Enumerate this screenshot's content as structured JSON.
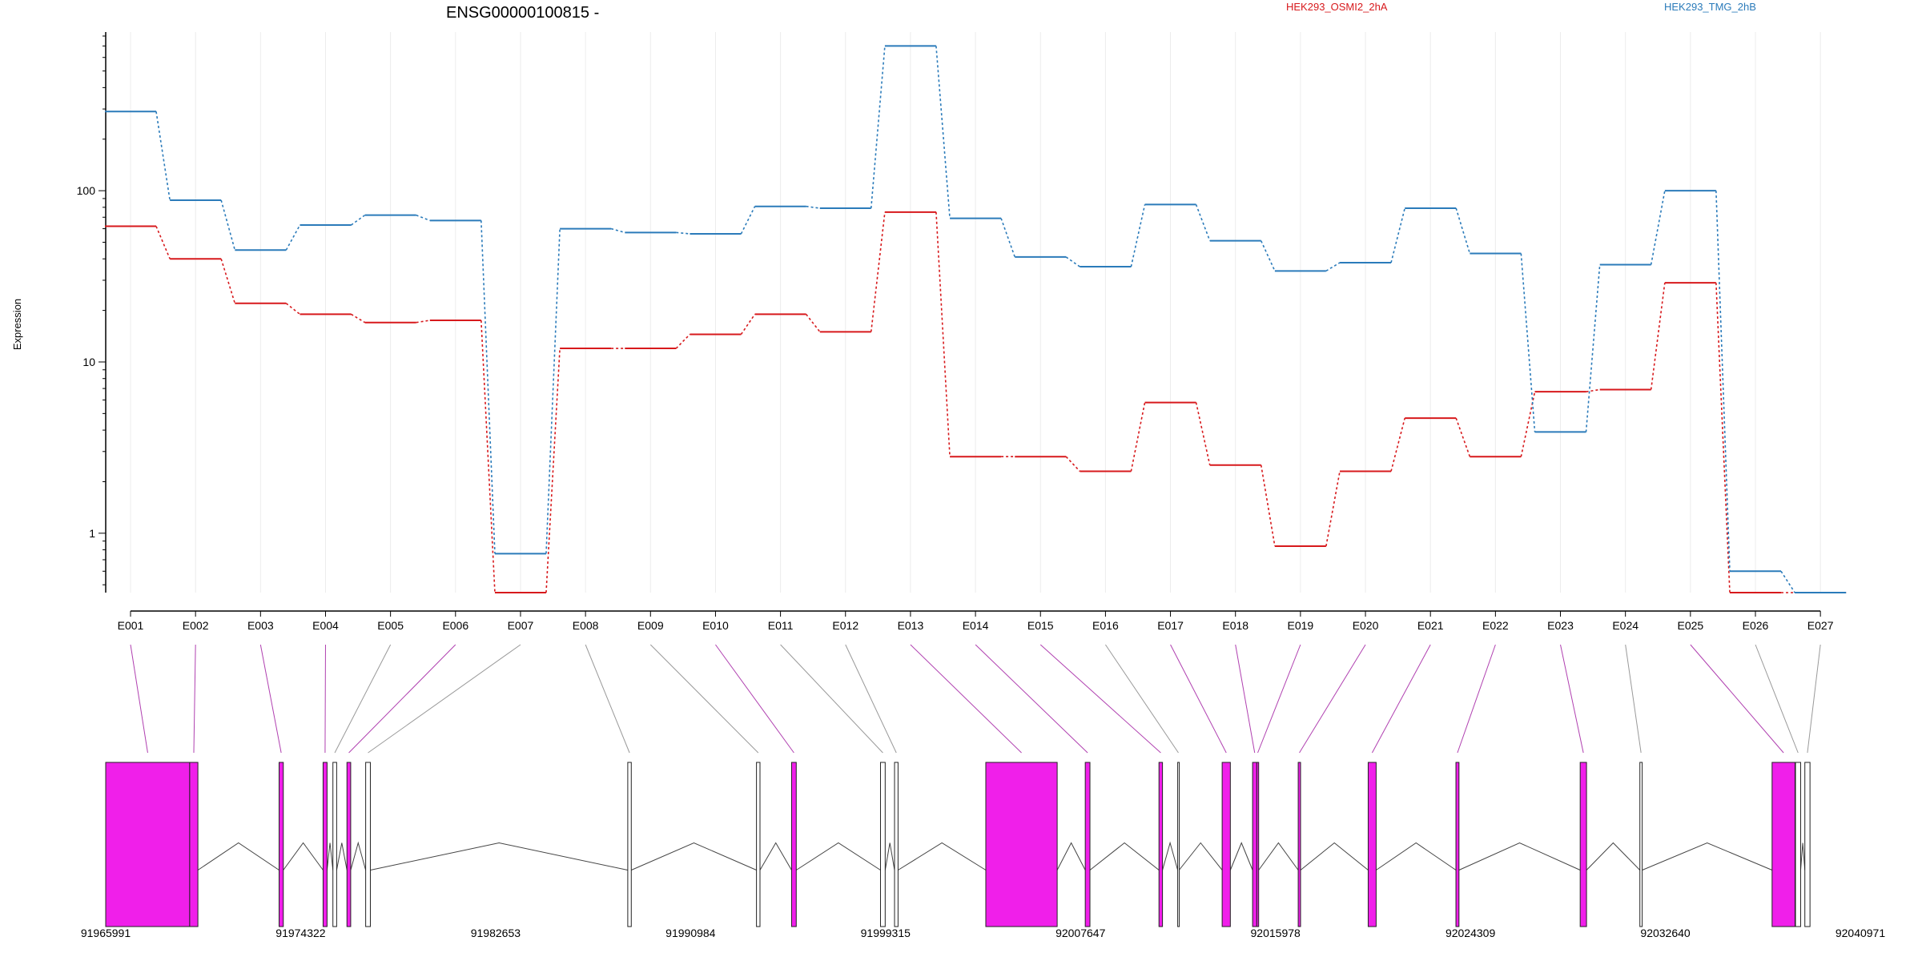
{
  "chart_data": {
    "type": "line",
    "title": "ENSG00000100815 -",
    "ylabel": "Expression",
    "yscale": "log",
    "ylim": [
      0.45,
      800
    ],
    "yticks": [
      "1",
      "10",
      "100"
    ],
    "grid": "vertical",
    "categories": [
      "E001",
      "E002",
      "E003",
      "E004",
      "E005",
      "E006",
      "E007",
      "E008",
      "E009",
      "E010",
      "E011",
      "E012",
      "E013",
      "E014",
      "E015",
      "E016",
      "E017",
      "E018",
      "E019",
      "E020",
      "E021",
      "E022",
      "E023",
      "E024",
      "E025",
      "E026",
      "E027"
    ],
    "series": [
      {
        "name": "HEK293_OSMI2_2hA",
        "color": "#d7191c",
        "values": [
          62,
          40,
          22,
          19,
          17,
          17.5,
          0.45,
          12,
          12,
          14.5,
          19,
          15,
          75,
          2.8,
          2.8,
          2.3,
          5.8,
          2.5,
          0.84,
          2.3,
          4.7,
          2.8,
          6.7,
          6.9,
          29,
          0.45,
          0.45
        ]
      },
      {
        "name": "HEK293_TMG_2hB",
        "color": "#2b7bba",
        "values": [
          290,
          88,
          45,
          63,
          72,
          67,
          0.76,
          60,
          57,
          56,
          81,
          79,
          700,
          69,
          41,
          36,
          83,
          51,
          34,
          38,
          79,
          43,
          3.9,
          37,
          100,
          0.6,
          0.45
        ]
      }
    ],
    "gene_model": {
      "genomic_ticks": [
        "91965991",
        "91974322",
        "91982653",
        "91990984",
        "91999315",
        "92007647",
        "92015978",
        "92024309",
        "92032640",
        "92040971"
      ],
      "genomic_range": [
        91965991,
        92040971
      ],
      "highlight_color": "#f01fea",
      "exons": [
        {
          "start": 91965991,
          "end": 91969580,
          "hl": true
        },
        {
          "start": 91969580,
          "end": 91969930,
          "hl": true
        },
        {
          "start": 91973400,
          "end": 91973580,
          "hl": true
        },
        {
          "start": 91975280,
          "end": 91975450,
          "hl": true
        },
        {
          "start": 91975700,
          "end": 91975860,
          "hl": false
        },
        {
          "start": 91976300,
          "end": 91976460,
          "hl": true
        },
        {
          "start": 91977100,
          "end": 91977300,
          "hl": false
        },
        {
          "start": 91988300,
          "end": 91988450,
          "hl": false
        },
        {
          "start": 91993800,
          "end": 91993950,
          "hl": false
        },
        {
          "start": 91995300,
          "end": 91995500,
          "hl": true
        },
        {
          "start": 91999100,
          "end": 91999300,
          "hl": false
        },
        {
          "start": 91999700,
          "end": 91999850,
          "hl": false
        },
        {
          "start": 92003600,
          "end": 92006650,
          "hl": true
        },
        {
          "start": 92007850,
          "end": 92008050,
          "hl": true
        },
        {
          "start": 92011000,
          "end": 92011150,
          "hl": true
        },
        {
          "start": 92011800,
          "end": 92011860,
          "hl": false
        },
        {
          "start": 92013700,
          "end": 92014050,
          "hl": true
        },
        {
          "start": 92015000,
          "end": 92015180,
          "hl": true
        },
        {
          "start": 92015180,
          "end": 92015260,
          "hl": true
        },
        {
          "start": 92016950,
          "end": 92017050,
          "hl": true
        },
        {
          "start": 92019940,
          "end": 92020280,
          "hl": true
        },
        {
          "start": 92023690,
          "end": 92023820,
          "hl": true
        },
        {
          "start": 92029000,
          "end": 92029270,
          "hl": true
        },
        {
          "start": 92031550,
          "end": 92031650,
          "hl": false
        },
        {
          "start": 92037200,
          "end": 92038180,
          "hl": true
        },
        {
          "start": 92038200,
          "end": 92038420,
          "hl": false
        },
        {
          "start": 92038600,
          "end": 92038820,
          "hl": false
        }
      ]
    }
  }
}
